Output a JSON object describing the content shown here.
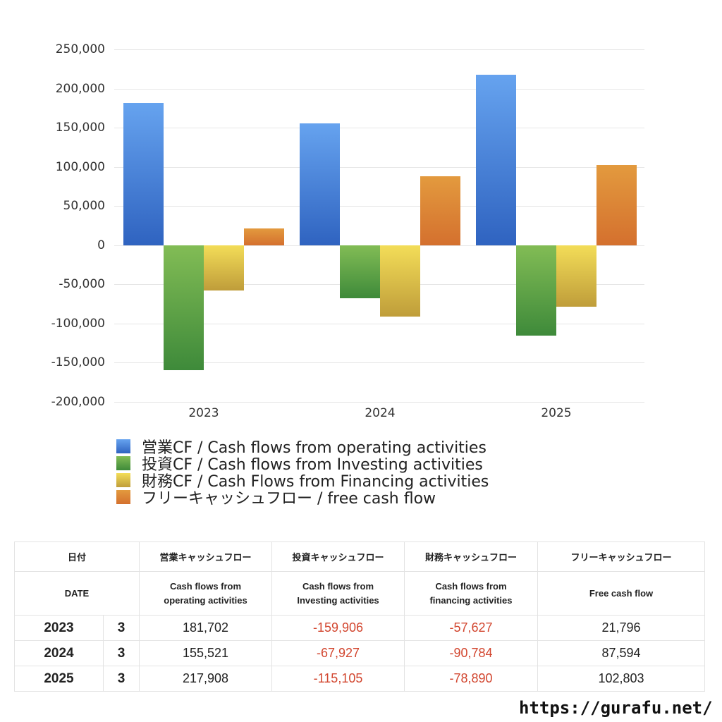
{
  "chart_data": {
    "type": "bar",
    "title": "",
    "xlabel": "",
    "ylabel": "",
    "categories": [
      "2023",
      "2024",
      "2025"
    ],
    "ylim": [
      -200000,
      250000
    ],
    "yticks": [
      "250,000",
      "200,000",
      "150,000",
      "100,000",
      "50,000",
      "0",
      "-50,000",
      "-100,000",
      "-150,000",
      "-200,000"
    ],
    "grid": true,
    "legend_position": "bottom",
    "series": [
      {
        "name": "営業CF / Cash flows from operating activities",
        "color": "#3a78d6",
        "values": [
          181702,
          155521,
          217908
        ]
      },
      {
        "name": "投資CF / Cash flows from Investing activities",
        "color": "#57a044",
        "values": [
          -159906,
          -67927,
          -115105
        ]
      },
      {
        "name": "財務CF / Cash Flows from Financing activities",
        "color": "#dcc047",
        "values": [
          -57627,
          -90784,
          -78890
        ]
      },
      {
        "name": "フリーキャッシュフロー / free cash flow",
        "color": "#db7b32",
        "values": [
          21796,
          87594,
          102803
        ]
      }
    ]
  },
  "legend": [
    {
      "label": "営業CF / Cash flows from operating activities"
    },
    {
      "label": "投資CF / Cash flows from Investing activities"
    },
    {
      "label": "財務CF / Cash Flows from Financing activities"
    },
    {
      "label": "フリーキャッシュフロー / free cash flow"
    }
  ],
  "table": {
    "header_jp": [
      "日付",
      "",
      "営業キャッシュフロー",
      "投資キャッシュフロー",
      "財務キャッシュフロー",
      "フリーキャッシュフロー"
    ],
    "header_en": [
      "DATE",
      "",
      "Cash flows from\noperating activities",
      "Cash flows from\nInvesting activities",
      "Cash flows from\nfinancing activities",
      "Free cash flow"
    ],
    "rows": [
      {
        "year": "2023",
        "month": "3",
        "operating": "181,702",
        "investing": "-159,906",
        "financing": "-57,627",
        "free": "21,796"
      },
      {
        "year": "2024",
        "month": "3",
        "operating": "155,521",
        "investing": "-67,927",
        "financing": "-90,784",
        "free": "87,594"
      },
      {
        "year": "2025",
        "month": "3",
        "operating": "217,908",
        "investing": "-115,105",
        "financing": "-78,890",
        "free": "102,803"
      }
    ]
  },
  "footer": {
    "url": "https://gurafu.net/"
  }
}
